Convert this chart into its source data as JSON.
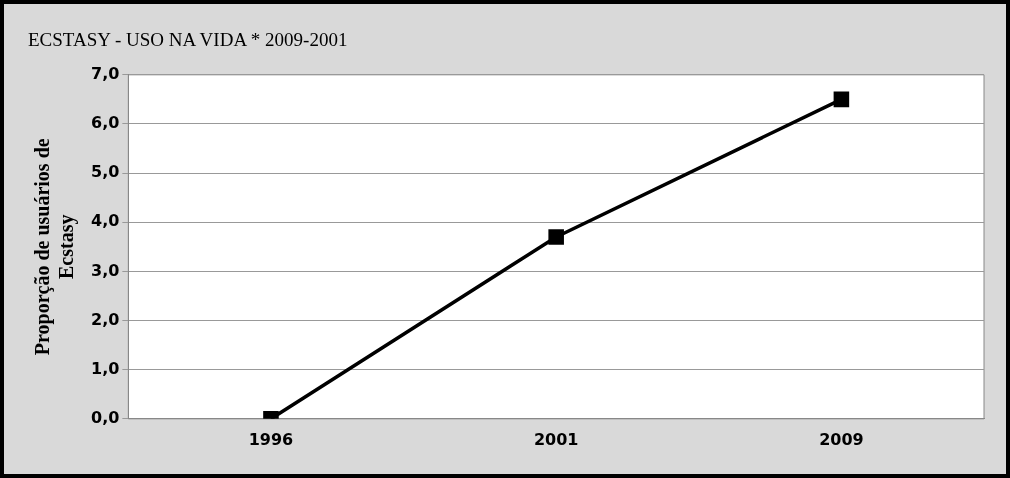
{
  "chart_data": {
    "type": "line",
    "title": "ECSTASY - USO NA VIDA * 2009-2001",
    "ylabel": "Proporção de usuários de Ecstasy",
    "categories": [
      "1996",
      "2001",
      "2009"
    ],
    "series": [
      {
        "color": "#000000",
        "values": [
          0.0,
          3.7,
          6.5
        ]
      }
    ],
    "ylim": [
      0,
      7
    ],
    "yticks": [
      {
        "value": 0,
        "label": "0,0"
      },
      {
        "value": 1,
        "label": "1,0"
      },
      {
        "value": 2,
        "label": "2,0"
      },
      {
        "value": 3,
        "label": "3,0"
      },
      {
        "value": 4,
        "label": "4,0"
      },
      {
        "value": 5,
        "label": "5,0"
      },
      {
        "value": 6,
        "label": "6,0"
      },
      {
        "value": 7,
        "label": "7,0"
      }
    ],
    "grid": "y",
    "legend": false,
    "marker": "square",
    "line_style": "solid"
  }
}
